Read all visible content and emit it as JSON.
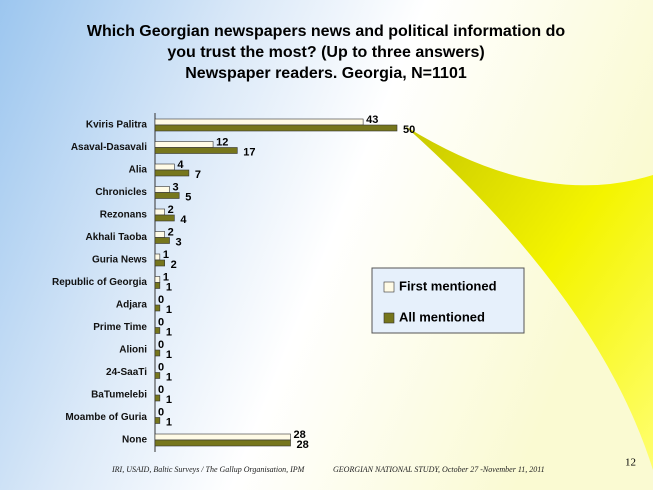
{
  "chart_data": {
    "type": "bar",
    "orientation": "horizontal",
    "title": [
      "Which Georgian newspapers news and political information do",
      "you trust the most? (Up to three answers)",
      "Newspaper readers. Georgia, N=1101"
    ],
    "categories": [
      "Kviris Palitra",
      "Asaval-Dasavali",
      "Alia",
      "Chronicles",
      "Rezonans",
      "Akhali Taoba",
      "Guria News",
      "Republic of Georgia",
      "Adjara",
      "Prime Time",
      "Alioni",
      "24-SaaTi",
      "BaTumelebi",
      "Moambe of Guria",
      "None"
    ],
    "series": [
      {
        "name": "First mentioned",
        "color": "#fffbe6",
        "values": [
          43,
          12,
          4,
          3,
          2,
          2,
          1,
          1,
          0,
          0,
          0,
          0,
          0,
          0,
          28
        ]
      },
      {
        "name": "All mentioned",
        "color": "#76761c",
        "values": [
          50,
          17,
          7,
          5,
          4,
          3,
          2,
          1,
          1,
          1,
          1,
          1,
          1,
          1,
          28
        ]
      }
    ],
    "legend": "right"
  },
  "footer": {
    "left": "IRI, USAID, Baltic Surveys / The Gallup Organisation, IPM",
    "right": "GEORGIAN NATIONAL STUDY, October 27 -November 11, 2011",
    "page_number": "12"
  }
}
